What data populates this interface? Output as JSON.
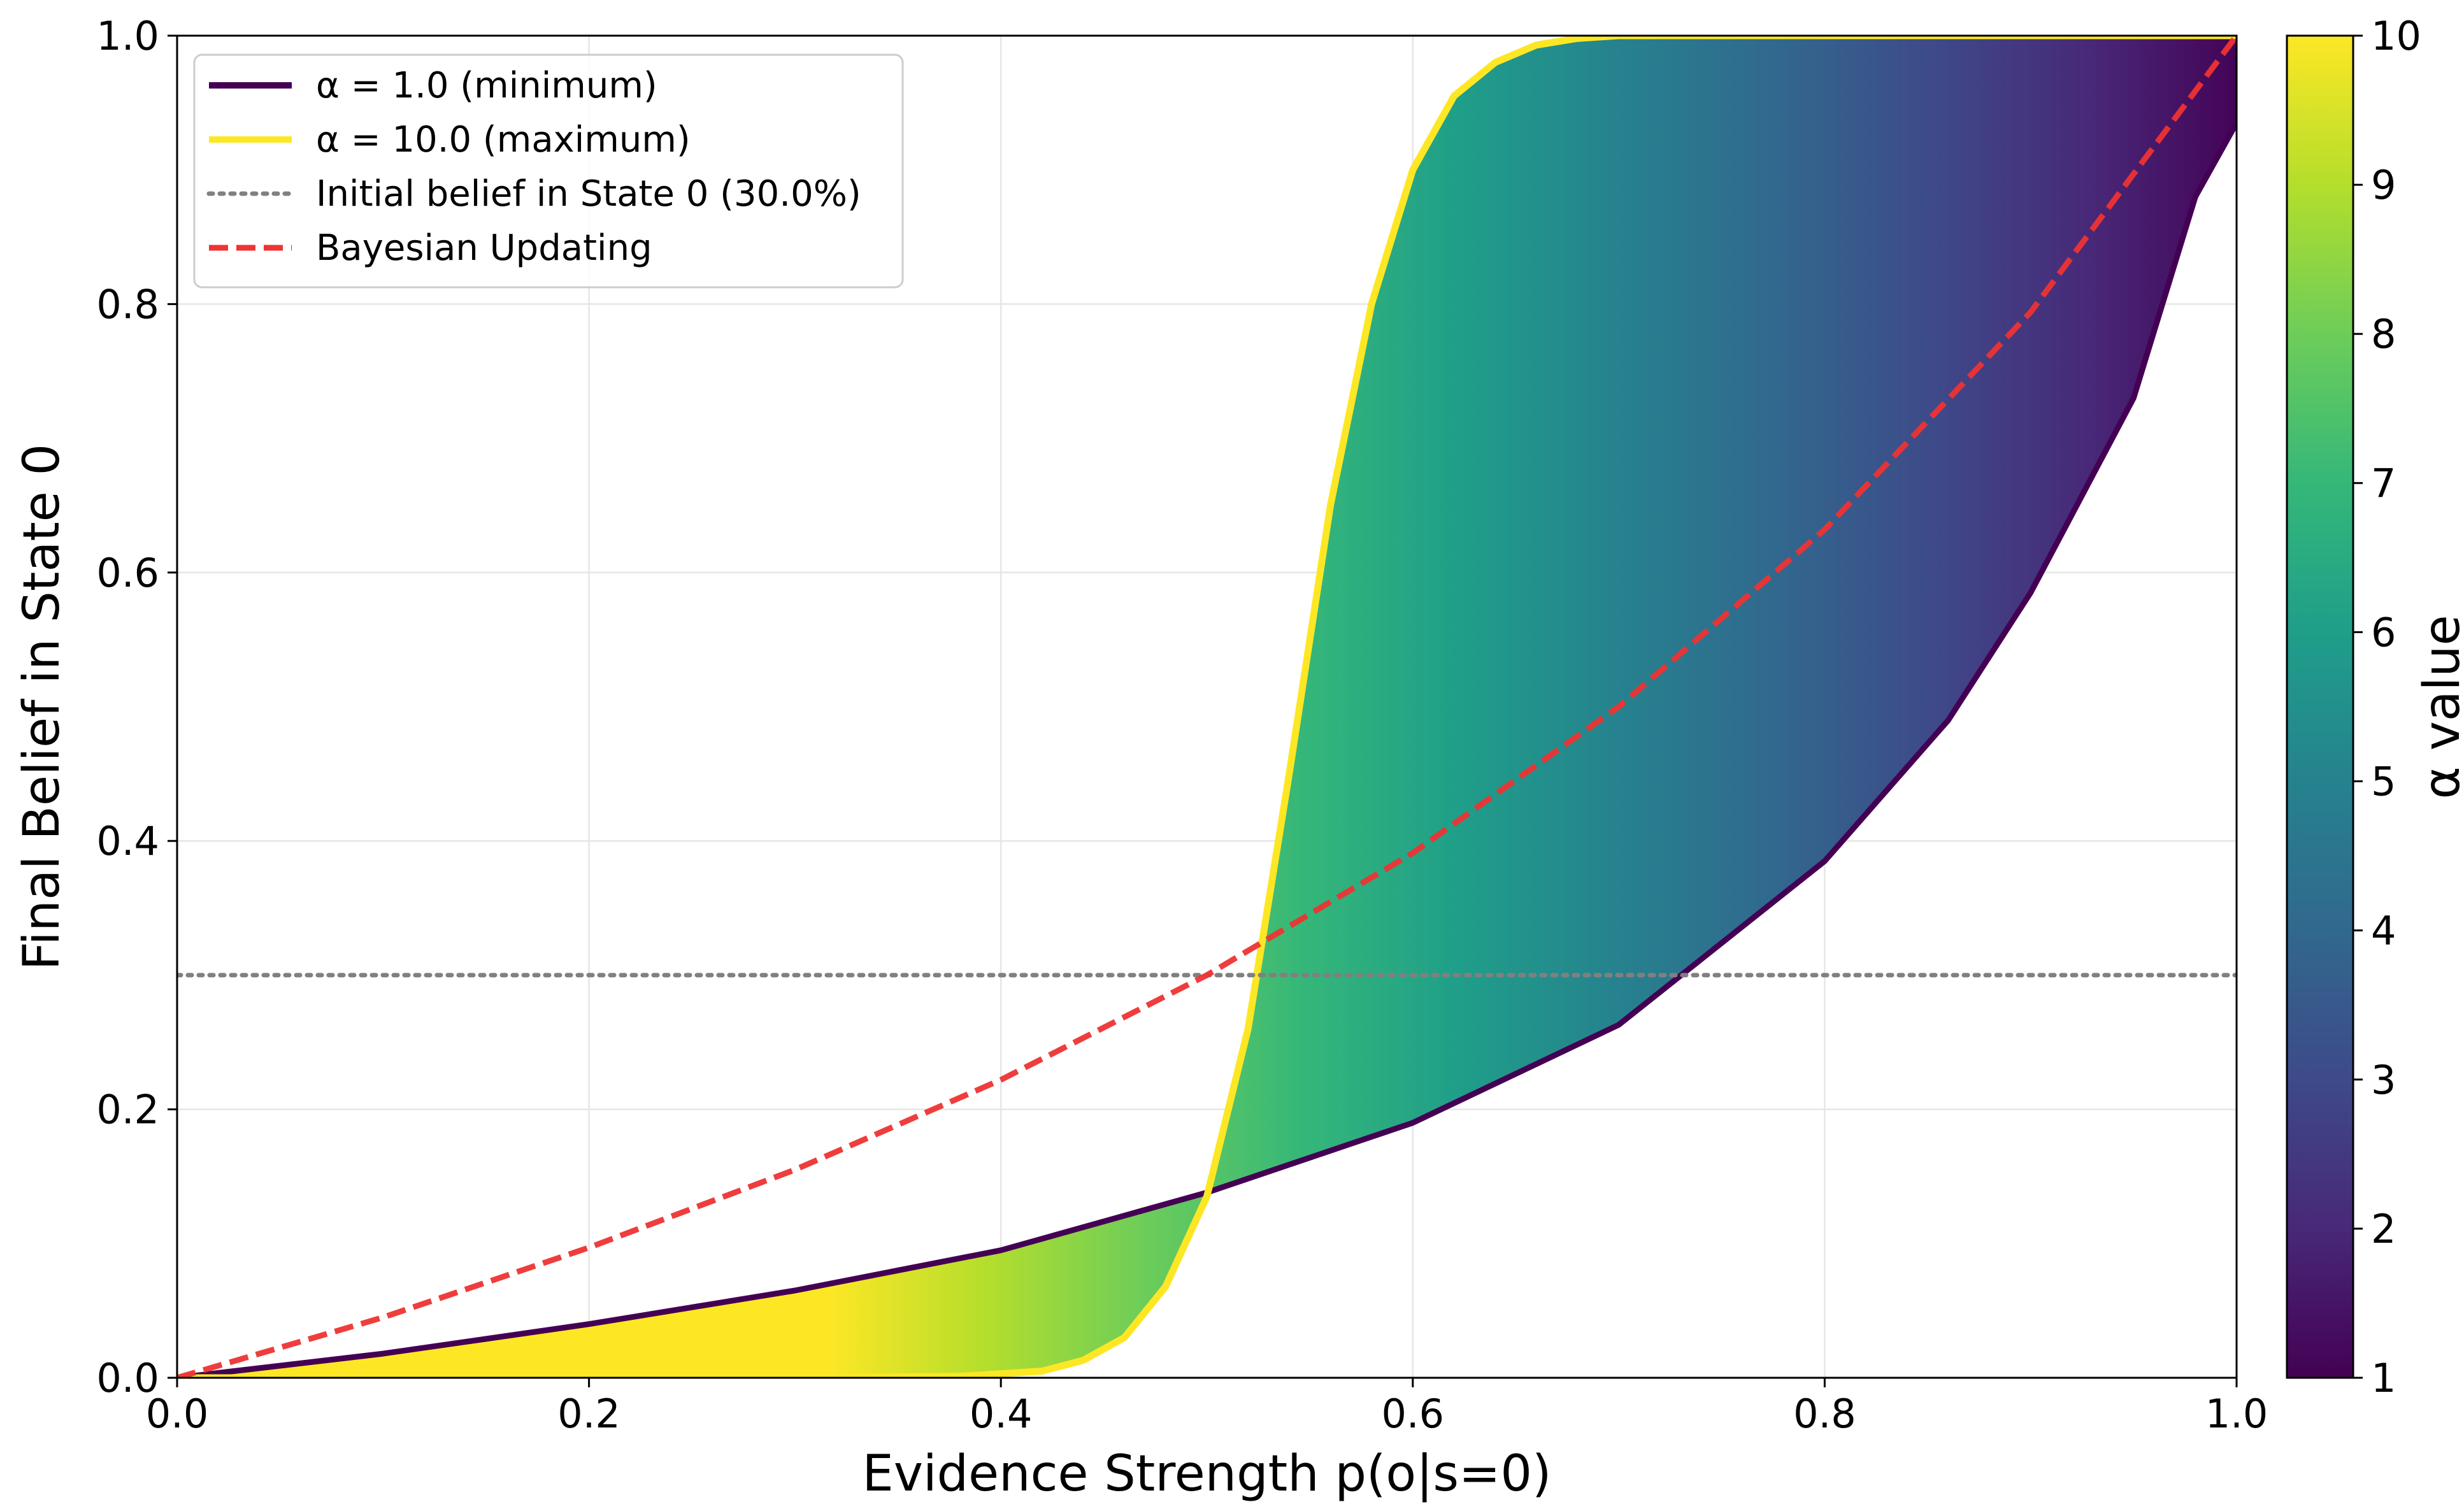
{
  "chart_data": {
    "type": "area",
    "title": "",
    "xlabel": "Evidence Strength p(o|s=0)",
    "ylabel": "Final Belief in State 0",
    "xlim": [
      0.0,
      1.0
    ],
    "ylim": [
      0.0,
      1.0
    ],
    "xticks": [
      "0.0",
      "0.2",
      "0.4",
      "0.6",
      "0.8",
      "1.0"
    ],
    "yticks": [
      "0.0",
      "0.2",
      "0.4",
      "0.6",
      "0.8",
      "1.0"
    ],
    "grid": true,
    "legend_position": "upper-left",
    "legend": [
      {
        "label": "α = 1.0 (minimum)",
        "color": "#440154",
        "style": "solid"
      },
      {
        "label": "α = 10.0 (maximum)",
        "color": "#FDE725",
        "style": "solid"
      },
      {
        "label": "Initial belief in State 0 (30.0%)",
        "color": "#808080",
        "style": "dotted"
      },
      {
        "label": "Bayesian Updating",
        "color": "#EE3333",
        "style": "dashed"
      }
    ],
    "colorbar": {
      "label": "α value",
      "min": 1,
      "max": 10,
      "ticks": [
        "1",
        "2",
        "3",
        "4",
        "5",
        "6",
        "7",
        "8",
        "9",
        "10"
      ],
      "colormap": "viridis",
      "stops": [
        "#440154",
        "#482878",
        "#3E4A89",
        "#31688E",
        "#26828E",
        "#1F9E89",
        "#35B779",
        "#6DCD59",
        "#B4DE2C",
        "#FDE725"
      ]
    },
    "initial_belief": 0.3,
    "series": [
      {
        "name": "α = 1.0 (minimum)",
        "x": [
          0.0,
          0.1,
          0.2,
          0.3,
          0.4,
          0.5,
          0.6,
          0.7,
          0.8,
          0.86,
          0.9,
          0.95,
          0.98,
          1.0
        ],
        "values": [
          0.0,
          0.018,
          0.04,
          0.065,
          0.095,
          0.138,
          0.19,
          0.263,
          0.385,
          0.49,
          0.585,
          0.73,
          0.88,
          0.935
        ]
      },
      {
        "name": "α = 10.0 (maximum)",
        "x": [
          0.0,
          0.1,
          0.2,
          0.3,
          0.38,
          0.42,
          0.44,
          0.46,
          0.48,
          0.5,
          0.52,
          0.54,
          0.56,
          0.58,
          0.6,
          0.62,
          0.64,
          0.66,
          0.68,
          0.7,
          0.8,
          0.9,
          1.0
        ],
        "values": [
          0.0,
          0.0,
          0.0,
          0.0,
          0.001,
          0.005,
          0.013,
          0.03,
          0.068,
          0.135,
          0.26,
          0.45,
          0.65,
          0.8,
          0.9,
          0.955,
          0.98,
          0.993,
          0.998,
          1.0,
          1.0,
          1.0,
          1.0
        ]
      },
      {
        "name": "Bayesian Updating",
        "x": [
          0.0,
          0.1,
          0.2,
          0.3,
          0.4,
          0.5,
          0.6,
          0.7,
          0.8,
          0.9,
          1.0
        ],
        "values": [
          0.0,
          0.045,
          0.097,
          0.155,
          0.222,
          0.3,
          0.391,
          0.5,
          0.632,
          0.794,
          1.0
        ]
      }
    ]
  }
}
